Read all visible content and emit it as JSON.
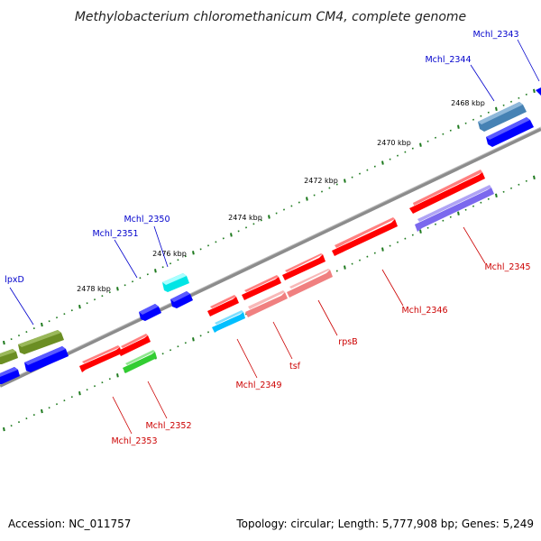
{
  "title": "Methylobacterium chloromethanicum CM4, complete genome",
  "accession": "Accession: NC_011757",
  "summary": "Topology: circular; Length: 5,777,908 bp; Genes: 5,249",
  "colors": {
    "backbone": "#808080",
    "ticks": "#1e7a1e",
    "label_forward": "#0000cc",
    "label_reverse": "#cc0000"
  },
  "scale_labels": [
    "2468 kbp",
    "2470 kbp",
    "2472 kbp",
    "2474 kbp",
    "2476 kbp",
    "2478 kbp"
  ],
  "genes": [
    {
      "name": "Mchl_2343",
      "color": "#0000ff",
      "strand": "forward"
    },
    {
      "name": "Mchl_2344",
      "color": "#4682b4",
      "strand": "forward"
    },
    {
      "name": "Mchl_2345",
      "color": "#7b68ee",
      "strand": "reverse"
    },
    {
      "name": "Mchl_2346",
      "color": "#ff0000",
      "strand": "reverse"
    },
    {
      "name": "rpsB",
      "color": "#f08080",
      "strand": "reverse"
    },
    {
      "name": "tsf",
      "color": "#f08080",
      "strand": "reverse"
    },
    {
      "name": "Mchl_2349",
      "color": "#00bfff",
      "strand": "reverse"
    },
    {
      "name": "Mchl_2350",
      "color": "#00ffff",
      "strand": "forward"
    },
    {
      "name": "Mchl_2351",
      "color": "#0000ff",
      "strand": "forward"
    },
    {
      "name": "Mchl_2352",
      "color": "#32cd32",
      "strand": "reverse"
    },
    {
      "name": "Mchl_2353",
      "color": "#ff0000",
      "strand": "reverse"
    },
    {
      "name": "lpxD",
      "color": "#6b8e23",
      "strand": "forward"
    }
  ]
}
